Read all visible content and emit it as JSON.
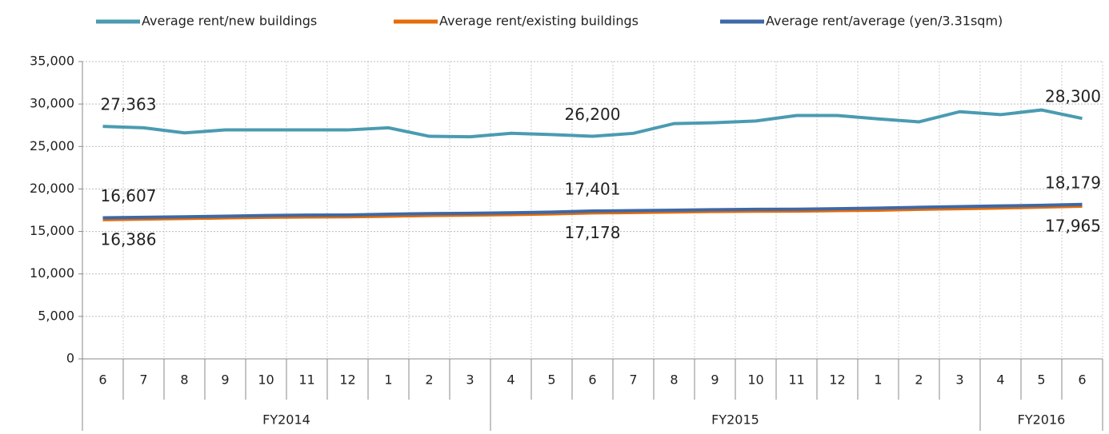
{
  "chart_data": {
    "type": "line",
    "categories": [
      "6",
      "7",
      "8",
      "9",
      "10",
      "11",
      "12",
      "1",
      "2",
      "3",
      "4",
      "5",
      "6",
      "7",
      "8",
      "9",
      "10",
      "11",
      "12",
      "1",
      "2",
      "3",
      "4",
      "5",
      "6"
    ],
    "groups": [
      {
        "label": "FY2014",
        "span": 10
      },
      {
        "label": "FY2015",
        "span": 12
      },
      {
        "label": "FY2016",
        "span": 3
      }
    ],
    "series": [
      {
        "name": "Average rent/new buildings",
        "color": "#4a9bb1",
        "values": [
          27363,
          27200,
          26600,
          26950,
          26950,
          26950,
          26950,
          27200,
          26200,
          26150,
          26550,
          26400,
          26200,
          26550,
          27700,
          27800,
          28000,
          28650,
          28650,
          28250,
          27900,
          29100,
          28750,
          29300,
          28300
        ],
        "value_labels": [
          "27,363",
          null,
          null,
          null,
          null,
          null,
          null,
          null,
          null,
          null,
          null,
          null,
          "26,200",
          null,
          null,
          null,
          null,
          null,
          null,
          null,
          null,
          null,
          null,
          null,
          "28,300"
        ]
      },
      {
        "name": "Average rent/existing buildings",
        "color": "#e46c0a",
        "values": [
          16386,
          16450,
          16520,
          16590,
          16660,
          16700,
          16720,
          16800,
          16880,
          16920,
          16980,
          17060,
          17178,
          17230,
          17290,
          17350,
          17380,
          17400,
          17450,
          17500,
          17600,
          17680,
          17760,
          17860,
          17965
        ],
        "value_labels": [
          "16,386",
          null,
          null,
          null,
          null,
          null,
          null,
          null,
          null,
          null,
          null,
          null,
          "17,178",
          null,
          null,
          null,
          null,
          null,
          null,
          null,
          null,
          null,
          null,
          null,
          "17,965"
        ]
      },
      {
        "name": "Average rent/average (yen/3.31sqm)",
        "color": "#3e68a6",
        "values": [
          16607,
          16660,
          16720,
          16800,
          16880,
          16920,
          16940,
          17030,
          17100,
          17140,
          17200,
          17280,
          17401,
          17450,
          17500,
          17560,
          17600,
          17620,
          17680,
          17750,
          17840,
          17920,
          18000,
          18080,
          18179
        ],
        "value_labels": [
          "16,607",
          null,
          null,
          null,
          null,
          null,
          null,
          null,
          null,
          null,
          null,
          null,
          "17,401",
          null,
          null,
          null,
          null,
          null,
          null,
          null,
          null,
          null,
          null,
          null,
          "18,179"
        ]
      }
    ],
    "ylim": [
      0,
      35000
    ],
    "yticks": [
      0,
      {
        "value": 5000,
        "label": "5,000"
      },
      {
        "value": 10000,
        "label": "10,000"
      },
      {
        "value": 15000,
        "label": "15,000"
      },
      {
        "value": 20000,
        "label": "20,000"
      },
      {
        "value": 25000,
        "label": "25,000"
      },
      {
        "value": 30000,
        "label": "30,000"
      },
      {
        "value": 35000,
        "label": "35,000"
      }
    ],
    "grid": true,
    "legend": "top"
  }
}
